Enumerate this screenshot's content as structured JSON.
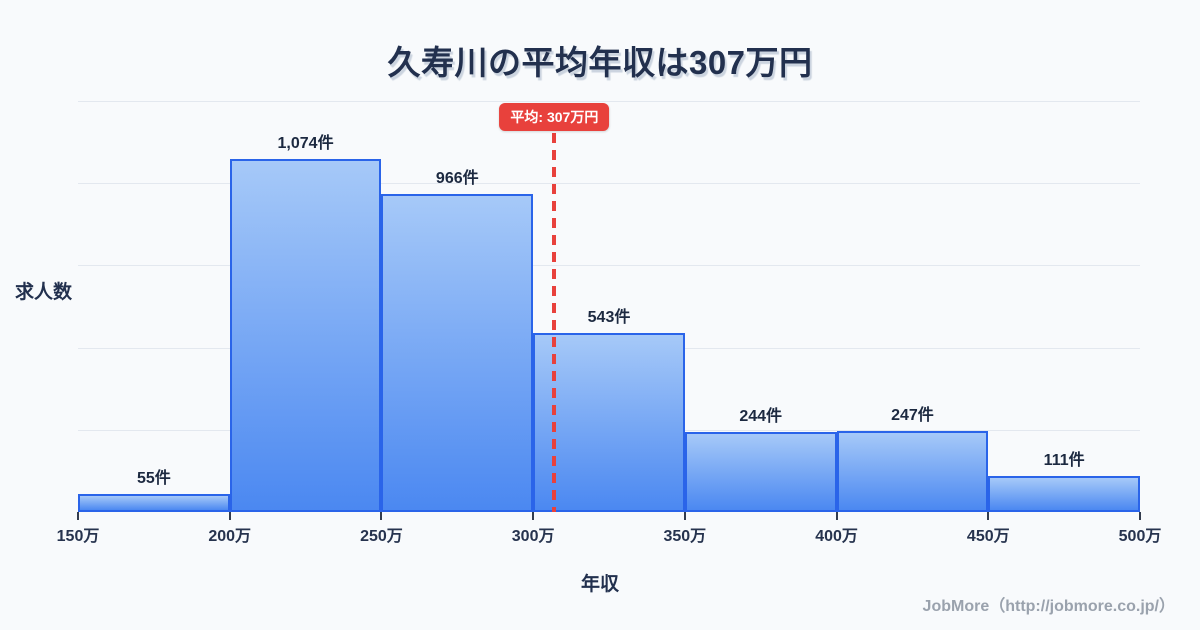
{
  "title": "久寿川の平均年収は307万円",
  "chart_data": {
    "type": "bar",
    "subtype": "histogram",
    "title": "久寿川の平均年収は307万円",
    "xlabel": "年収",
    "ylabel": "求人数",
    "x_ticks": [
      "150万",
      "200万",
      "250万",
      "300万",
      "350万",
      "400万",
      "450万",
      "500万"
    ],
    "x_range": [
      150,
      500
    ],
    "bin_width": 50,
    "values": [
      55,
      1074,
      966,
      543,
      244,
      247,
      111
    ],
    "bar_labels": [
      "55件",
      "1,074件",
      "966件",
      "543件",
      "244件",
      "247件",
      "111件"
    ],
    "ylim": [
      0,
      1250
    ],
    "gridline_values": [
      250,
      500,
      750,
      1000,
      1250
    ],
    "grid": "horizontal only",
    "legend": "none",
    "mean_marker": {
      "value": 307,
      "label": "平均: 307万円",
      "style": "vertical red dashed line with red badge"
    },
    "colors": {
      "background": "#f8fafc",
      "bar_fill_top": "#a6c9f8",
      "bar_fill_bottom": "#4b88f1",
      "bar_border": "#2a64e9",
      "mean_line": "#e8413c",
      "badge_bg": "#e8413c",
      "badge_text": "#ffffff",
      "grid": "#e3e8ef",
      "text_dark": "#22304e",
      "footer_text": "#9aa2ad"
    }
  },
  "footer": {
    "credit": "JobMore（http://jobmore.co.jp/）"
  }
}
